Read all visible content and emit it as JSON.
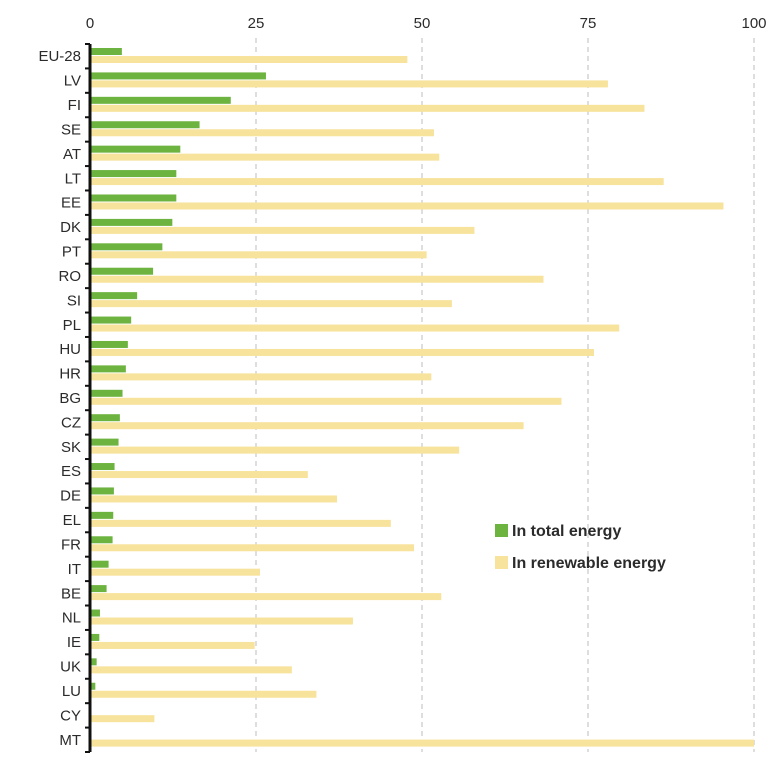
{
  "chart_data": {
    "type": "bar",
    "orientation": "horizontal",
    "categories": [
      "EU-28",
      "LV",
      "FI",
      "SE",
      "AT",
      "LT",
      "EE",
      "DK",
      "PT",
      "RO",
      "SI",
      "PL",
      "HU",
      "HR",
      "BG",
      "CZ",
      "SK",
      "ES",
      "DE",
      "EL",
      "FR",
      "IT",
      "BE",
      "NL",
      "IE",
      "UK",
      "LU",
      "CY",
      "MT"
    ],
    "series": [
      {
        "name": "In total energy",
        "color": "#6db33f",
        "values": [
          4.8,
          26.5,
          21.2,
          16.5,
          13.6,
          13.0,
          13.0,
          12.4,
          10.9,
          9.5,
          7.1,
          6.2,
          5.7,
          5.4,
          4.9,
          4.5,
          4.3,
          3.7,
          3.6,
          3.5,
          3.4,
          2.8,
          2.5,
          1.5,
          1.4,
          1.0,
          0.8,
          0.2,
          0.0
        ]
      },
      {
        "name": "In renewable energy",
        "color": "#f7e39b",
        "values": [
          47.8,
          78.0,
          83.5,
          51.8,
          52.6,
          86.4,
          95.4,
          57.9,
          50.7,
          68.3,
          54.5,
          79.7,
          75.9,
          51.4,
          71.0,
          65.3,
          55.6,
          32.8,
          37.2,
          45.3,
          48.8,
          25.6,
          52.9,
          39.6,
          24.8,
          30.4,
          34.1,
          9.7,
          100.0
        ]
      }
    ],
    "xlim": [
      0,
      100
    ],
    "xticks": [
      0,
      25,
      50,
      75,
      100
    ],
    "grid": "vertical-dashed",
    "legend_position": "center-right"
  }
}
